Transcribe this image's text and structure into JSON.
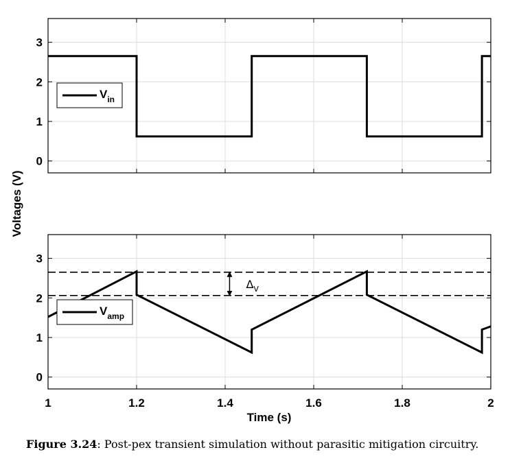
{
  "chart_data": [
    {
      "type": "line",
      "ylabel": "Voltages (V)",
      "xlim": [
        1,
        2
      ],
      "ylim": [
        -0.3,
        3.6
      ],
      "xticks": [
        "1",
        "1.2",
        "1.4",
        "1.6",
        "1.8",
        "2"
      ],
      "yticks": [
        "0",
        "1",
        "2",
        "3"
      ],
      "grid": true,
      "legend_position": "middle-left",
      "series": [
        {
          "name": "V_in",
          "name_main": "V",
          "name_sub": "in",
          "x": [
            1.0,
            1.2,
            1.2,
            1.46,
            1.46,
            1.72,
            1.72,
            1.98,
            1.98,
            2.0
          ],
          "y": [
            2.65,
            2.65,
            0.62,
            0.62,
            2.65,
            2.65,
            0.62,
            0.62,
            2.65,
            2.65
          ]
        }
      ]
    },
    {
      "type": "line",
      "xlabel": "Time (s)",
      "xlim": [
        1,
        2
      ],
      "ylim": [
        -0.3,
        3.6
      ],
      "xticks": [
        "1",
        "1.2",
        "1.4",
        "1.6",
        "1.8",
        "2"
      ],
      "yticks": [
        "0",
        "1",
        "2",
        "3"
      ],
      "grid": true,
      "legend_position": "middle-left",
      "series": [
        {
          "name": "V_amp",
          "name_main": "V",
          "name_sub": "amp",
          "x": [
            1.0,
            1.2,
            1.2,
            1.46,
            1.46,
            1.72,
            1.72,
            1.98,
            1.98,
            2.0
          ],
          "y": [
            1.52,
            2.67,
            2.08,
            0.62,
            1.2,
            2.67,
            2.08,
            0.62,
            1.2,
            1.28
          ]
        }
      ],
      "reference_lines_y": [
        2.65,
        2.06
      ],
      "annotation": {
        "x": 1.41,
        "main": "Δ",
        "sub": "V"
      }
    }
  ],
  "caption": {
    "label": "Figure 3.24",
    "text": ": Post-pex transient simulation without parasitic mitigation circuitry."
  }
}
